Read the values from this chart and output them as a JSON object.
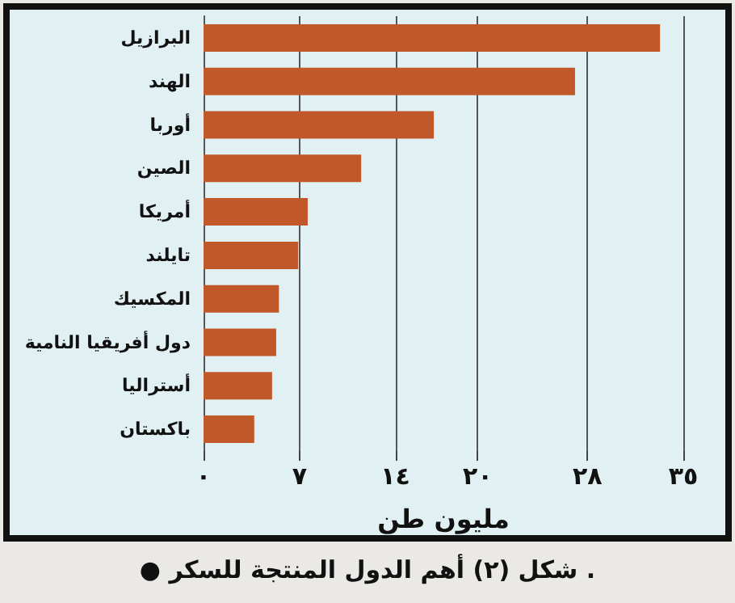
{
  "chart_data": {
    "type": "bar",
    "orientation": "horizontal",
    "title": "● شكل (٢) أهم الدول المنتجة للسكر .",
    "xlabel": "مليون طن",
    "categories": [
      "البرازيل",
      "الهند",
      "أوربا",
      "الصين",
      "أمريكا",
      "تايلند",
      "المكسيك",
      "دول أفريقيا النامية",
      "أستراليا",
      "باكستان"
    ],
    "values": [
      33.3,
      27.1,
      16.8,
      11.5,
      7.6,
      6.9,
      5.5,
      5.3,
      5.0,
      3.7
    ],
    "color": "#c0582a",
    "xlim": [
      0,
      35
    ],
    "xticks": [
      {
        "value": 0,
        "label": "٠"
      },
      {
        "value": 7,
        "label": "٧"
      },
      {
        "value": 14,
        "label": "١٤"
      },
      {
        "value": 20,
        "label": "٢٠"
      },
      {
        "value": 28,
        "label": "٢٨"
      },
      {
        "value": 35,
        "label": "٣٥"
      }
    ],
    "grid": "x"
  }
}
